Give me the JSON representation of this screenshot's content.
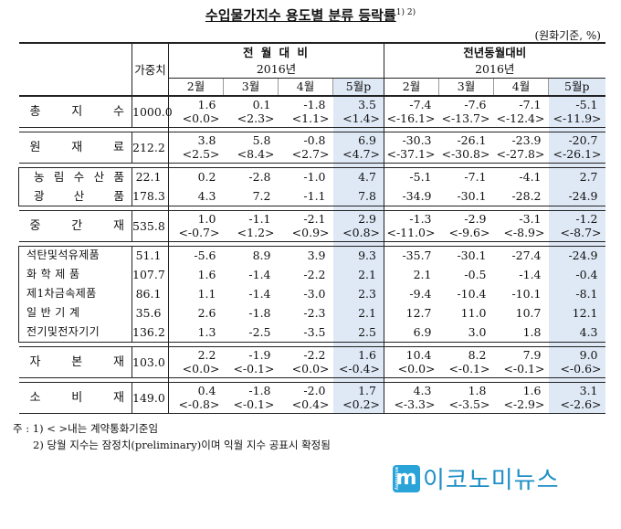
{
  "title": "수입물가지수 용도별 분류 등락률",
  "title_sup": "1) 2)",
  "unit": "(원화기준, %)",
  "headers": {
    "weight": "가중치",
    "mom": "전 월 대 비",
    "yoy": "전년동월대비",
    "year": "2016년",
    "months": [
      "2월",
      "3월",
      "4월",
      "5월p"
    ]
  },
  "rows": [
    {
      "label": "총 지 수",
      "weight": "1000.0",
      "v": [
        "1.6",
        "0.1",
        "-1.8",
        "3.5",
        "-7.4",
        "-7.6",
        "-7.1",
        "-5.1"
      ],
      "c": [
        "<0.0>",
        "<2.3>",
        "<1.1>",
        "<1.4>",
        "<-16.1>",
        "<-13.7>",
        "<-12.4>",
        "<-11.9>"
      ]
    },
    {
      "label": "원 재 료",
      "weight": "212.2",
      "v": [
        "3.8",
        "5.8",
        "-0.8",
        "6.9",
        "-30.3",
        "-26.1",
        "-23.9",
        "-20.7"
      ],
      "c": [
        "<2.5>",
        "<8.4>",
        "<2.7>",
        "<4.7>",
        "<-37.1>",
        "<-30.8>",
        "<-27.8>",
        "<-26.1>"
      ]
    },
    {
      "label": "농 림 수 산 품",
      "weight": "22.1",
      "v": [
        "0.2",
        "-2.8",
        "-1.0",
        "4.7",
        "-5.1",
        "-7.1",
        "-4.1",
        "2.7"
      ]
    },
    {
      "label": "광 산 품",
      "weight": "178.3",
      "v": [
        "4.3",
        "7.2",
        "-1.1",
        "7.8",
        "-34.9",
        "-30.1",
        "-28.2",
        "-24.9"
      ]
    },
    {
      "label": "중 간 재",
      "weight": "535.8",
      "v": [
        "1.0",
        "-1.1",
        "-2.1",
        "2.9",
        "-1.3",
        "-2.9",
        "-3.1",
        "-1.2"
      ],
      "c": [
        "<-0.7>",
        "<1.2>",
        "<0.9>",
        "<0.8>",
        "<-11.0>",
        "<-9.6>",
        "<-8.9>",
        "<-8.7>"
      ]
    },
    {
      "label": "석탄및석유제품",
      "weight": "51.1",
      "v": [
        "-5.6",
        "8.9",
        "3.9",
        "9.3",
        "-35.7",
        "-30.1",
        "-27.4",
        "-24.9"
      ]
    },
    {
      "label": "화 학 제 품",
      "weight": "107.7",
      "v": [
        "1.6",
        "-1.4",
        "-2.2",
        "2.1",
        "2.1",
        "-0.5",
        "-1.4",
        "-0.4"
      ]
    },
    {
      "label": "제1차금속제품",
      "weight": "86.1",
      "v": [
        "1.1",
        "-1.4",
        "-3.0",
        "2.3",
        "-9.4",
        "-10.4",
        "-10.1",
        "-8.1"
      ]
    },
    {
      "label": "일 반 기 계",
      "weight": "35.6",
      "v": [
        "2.6",
        "-1.8",
        "-2.3",
        "2.1",
        "12.7",
        "11.0",
        "10.7",
        "12.1"
      ]
    },
    {
      "label": "전기및전자기기",
      "weight": "136.2",
      "v": [
        "1.3",
        "-2.5",
        "-3.5",
        "2.5",
        "6.9",
        "3.0",
        "1.8",
        "4.3"
      ]
    },
    {
      "label": "자 본 재",
      "weight": "103.0",
      "v": [
        "2.2",
        "-1.9",
        "-2.2",
        "1.6",
        "10.4",
        "8.2",
        "7.9",
        "9.0"
      ],
      "c": [
        "<0.0>",
        "<-0.1>",
        "<0.0>",
        "<-0.4>",
        "<0.0>",
        "<-0.1>",
        "<-0.1>",
        "<-0.6>"
      ]
    },
    {
      "label": "소 비 재",
      "weight": "149.0",
      "v": [
        "0.4",
        "-1.8",
        "-2.0",
        "1.7",
        "4.3",
        "1.8",
        "1.6",
        "3.1"
      ],
      "c": [
        "<-0.8>",
        "<-0.1>",
        "<0.4>",
        "<0.2>",
        "<-3.3>",
        "<-3.5>",
        "<-2.9>",
        "<-2.6>"
      ]
    }
  ],
  "notes": {
    "note1": "주 : 1) < >내는 계약통화기준임",
    "note2": "2) 당월 지수는 잠정치(preliminary)이며 익월 지수 공표시 확정됨"
  },
  "logo": {
    "text": "이코노미뉴스",
    "mark": "m",
    "mark_small": "economy"
  }
}
